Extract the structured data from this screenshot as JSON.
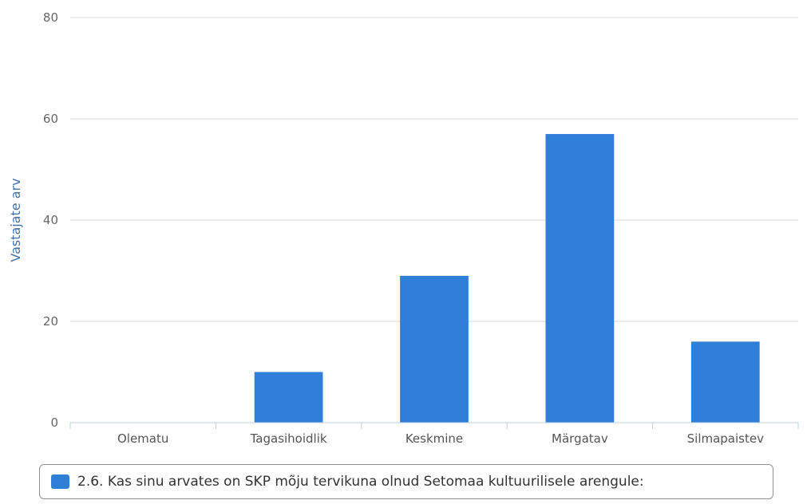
{
  "chart_data": {
    "type": "bar",
    "categories": [
      "Olematu",
      "Tagasihoidlik",
      "Keskmine",
      "Märgatav",
      "Silmapaistev"
    ],
    "series": [
      {
        "name": "2.6. Kas sinu arvates on SKP mõju tervikuna olnud Setomaa kultuurilisele arengule:",
        "values": [
          0,
          10,
          29,
          57,
          16
        ],
        "color": "#2f7ed8"
      }
    ],
    "ylabel": "Vastajate arv",
    "ylim": [
      0,
      80
    ],
    "yticks": [
      0,
      20,
      40,
      60,
      80
    ],
    "grid": true,
    "legend_position": "bottom"
  }
}
